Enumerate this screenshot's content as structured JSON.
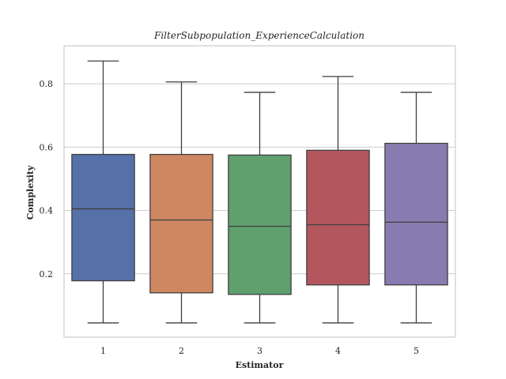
{
  "chart_data": {
    "type": "box",
    "title": "FilterSubpopulation_ExperienceCalculation",
    "xlabel": "Estimator",
    "ylabel": "Complexity",
    "ylim": [
      0.0,
      0.92
    ],
    "yticks": [
      0.2,
      0.4,
      0.6,
      0.8
    ],
    "ytick_labels": [
      "0.2",
      "0.4",
      "0.6",
      "0.8"
    ],
    "grid": "horizontal",
    "categories": [
      "1",
      "2",
      "3",
      "4",
      "5"
    ],
    "colors": [
      "#5571a7",
      "#cd8862",
      "#5fa06e",
      "#b4565e",
      "#877bb0"
    ],
    "boxes": [
      {
        "category": "1",
        "whisker_low": 0.045,
        "q1": 0.178,
        "median": 0.405,
        "q3": 0.577,
        "whisker_high": 0.872
      },
      {
        "category": "2",
        "whisker_low": 0.045,
        "q1": 0.14,
        "median": 0.37,
        "q3": 0.577,
        "whisker_high": 0.806
      },
      {
        "category": "3",
        "whisker_low": 0.045,
        "q1": 0.135,
        "median": 0.35,
        "q3": 0.575,
        "whisker_high": 0.773
      },
      {
        "category": "4",
        "whisker_low": 0.045,
        "q1": 0.165,
        "median": 0.355,
        "q3": 0.59,
        "whisker_high": 0.823
      },
      {
        "category": "5",
        "whisker_low": 0.045,
        "q1": 0.165,
        "median": 0.363,
        "q3": 0.612,
        "whisker_high": 0.773
      }
    ]
  }
}
